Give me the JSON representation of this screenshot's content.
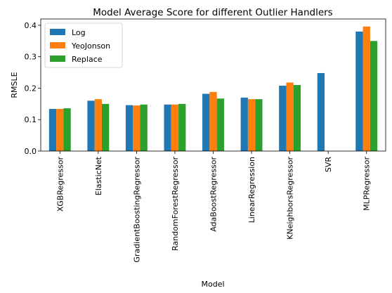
{
  "chart_data": {
    "type": "bar",
    "title": "Model Average Score for different Outlier Handlers",
    "xlabel": "Model",
    "ylabel": "RMSLE",
    "ylim": [
      0,
      0.42
    ],
    "yticks": [
      "0.0",
      "0.1",
      "0.2",
      "0.3",
      "0.4"
    ],
    "grid": false,
    "legend_position": "top-left",
    "categories": [
      "XGBRegressor",
      "ElasticNet",
      "GradientBoostingRegressor",
      "RandomForestRegressor",
      "AdaBoostRegressor",
      "LinearRegression",
      "KNeighborsRegressor",
      "SVR",
      "MLPRegressor"
    ],
    "series": [
      {
        "name": "Log",
        "color": "#1f77b4",
        "values": [
          0.134,
          0.16,
          0.146,
          0.148,
          0.182,
          0.17,
          0.208,
          0.248,
          0.38
        ]
      },
      {
        "name": "YeoJonson",
        "color": "#ff7f0e",
        "values": [
          0.134,
          0.165,
          0.145,
          0.148,
          0.188,
          0.165,
          0.218,
          null,
          0.396
        ]
      },
      {
        "name": "Replace",
        "color": "#2ca02c",
        "values": [
          0.136,
          0.15,
          0.148,
          0.15,
          0.167,
          0.165,
          0.21,
          null,
          0.35
        ]
      }
    ]
  }
}
